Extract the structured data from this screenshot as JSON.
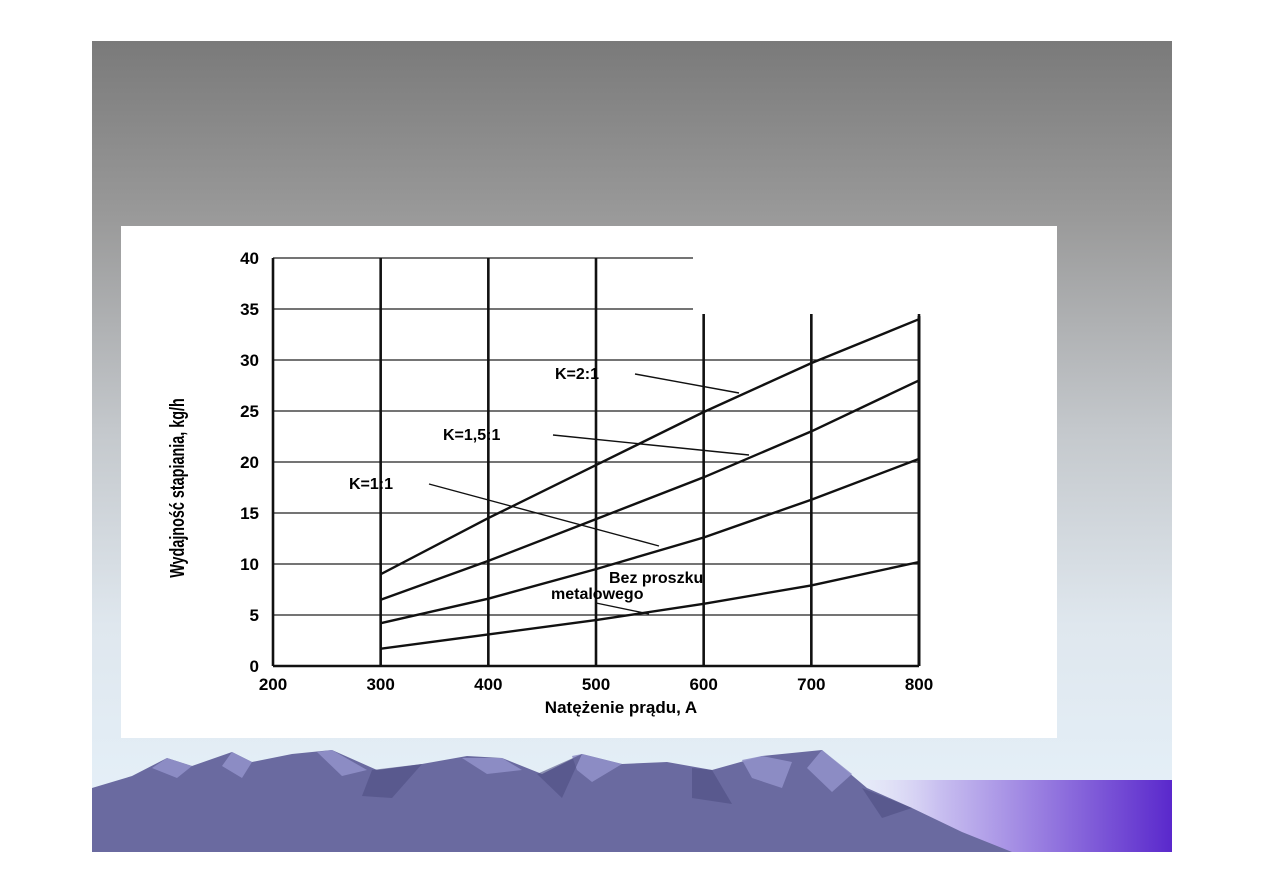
{
  "chart_data": {
    "type": "line",
    "xlabel": "Natężenie prądu, A",
    "ylabel": "Wydajność stapiania, kg/h",
    "xlim": [
      200,
      800
    ],
    "ylim": [
      0,
      40
    ],
    "x_ticks": [
      "200",
      "300",
      "400",
      "500",
      "600",
      "700",
      "800"
    ],
    "y_ticks": [
      "0",
      "5",
      "10",
      "15",
      "20",
      "25",
      "30",
      "35",
      "40"
    ],
    "grid": true,
    "series": [
      {
        "name": "K=2:1",
        "x": [
          300,
          400,
          500,
          600,
          700,
          800
        ],
        "y": [
          9,
          14.5,
          19.7,
          24.9,
          29.7,
          34
        ]
      },
      {
        "name": "K=1,5:1",
        "x": [
          300,
          400,
          500,
          600,
          700,
          800
        ],
        "y": [
          6.5,
          10.3,
          14.4,
          18.5,
          23,
          28
        ]
      },
      {
        "name": "K=1:1",
        "x": [
          300,
          400,
          500,
          600,
          700,
          800
        ],
        "y": [
          4.2,
          6.6,
          9.5,
          12.6,
          16.3,
          20.3
        ]
      },
      {
        "name_lines": [
          "Bez proszku",
          "metalowego"
        ],
        "x": [
          300,
          400,
          500,
          600,
          700,
          800
        ],
        "y": [
          1.7,
          3.1,
          4.5,
          6.1,
          7.9,
          10.2
        ]
      }
    ],
    "labels": {
      "k21": "K=2:1",
      "k151": "K=1,5:1",
      "k11": "K=1:1",
      "bez1": "Bez proszku",
      "bez2": "metalowego"
    }
  },
  "colors": {
    "line": "#111111",
    "mountain_dark": "#646496",
    "mountain_light": "#8a8ac0",
    "banner_purple": "#6030d0"
  }
}
